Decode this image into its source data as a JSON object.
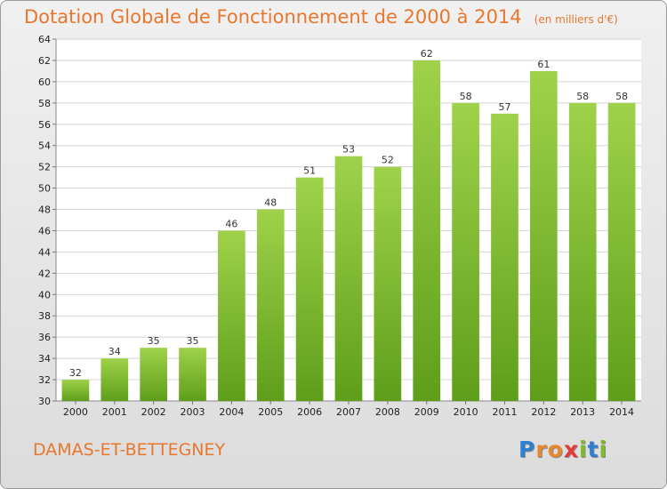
{
  "chart_data": {
    "type": "bar",
    "title": "Dotation Globale de Fonctionnement de 2000 à 2014",
    "subtitle": "(en milliers d'€)",
    "categories": [
      "2000",
      "2001",
      "2002",
      "2003",
      "2004",
      "2005",
      "2006",
      "2007",
      "2008",
      "2009",
      "2010",
      "2011",
      "2012",
      "2013",
      "2014"
    ],
    "values": [
      32,
      34,
      35,
      35,
      46,
      48,
      51,
      53,
      52,
      62,
      58,
      57,
      61,
      58,
      58
    ],
    "ylim": [
      30,
      64
    ],
    "yticks": [
      30,
      32,
      34,
      36,
      38,
      40,
      42,
      44,
      46,
      48,
      50,
      52,
      54,
      56,
      58,
      60,
      62,
      64
    ],
    "grid": true,
    "bar_color": "#7cbc2c",
    "xlabel": "",
    "ylabel": ""
  },
  "footer": {
    "commune": "DAMAS-ET-BETTEGNEY",
    "logo_letters": [
      {
        "ch": "P",
        "color": "#2f7fd1"
      },
      {
        "ch": "r",
        "color": "#e8872e"
      },
      {
        "ch": "o",
        "color": "#e8872e"
      },
      {
        "ch": "x",
        "color": "#e53935"
      },
      {
        "ch": "i",
        "color": "#7cbc2c"
      },
      {
        "ch": "t",
        "color": "#2f7fd1"
      },
      {
        "ch": "i",
        "color": "#7cbc2c"
      }
    ]
  },
  "colors": {
    "title": "#e8772e",
    "background": "#e6e6e6",
    "plot_background": "#ffffff",
    "grid": "#d4d4d4"
  }
}
